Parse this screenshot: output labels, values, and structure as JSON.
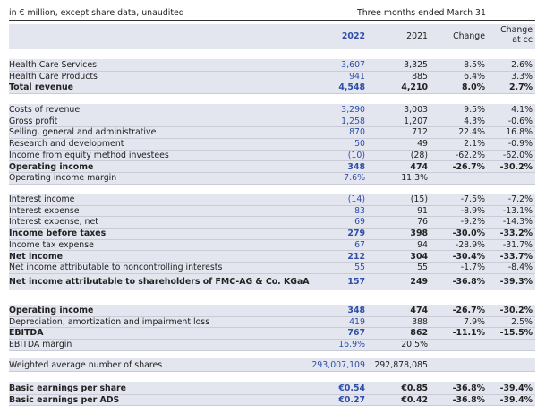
{
  "header": {
    "unit_note": "in € million, except share data, unaudited",
    "period": "Three months ended March 31"
  },
  "columns": {
    "y2022": "2022",
    "y2021": "2021",
    "change": "Change",
    "change_cc_line1": "Change",
    "change_cc_line2": "at cc"
  },
  "rows": [
    {
      "label": "Health Care Services",
      "v2022": "3,607",
      "v2021": "3,325",
      "change": "8.5%",
      "change_cc": "2.6%",
      "bold": false
    },
    {
      "label": "Health Care Products",
      "v2022": "941",
      "v2021": "885",
      "change": "6.4%",
      "change_cc": "3.3%",
      "bold": false
    },
    {
      "label": "Total revenue",
      "v2022": "4,548",
      "v2021": "4,210",
      "change": "8.0%",
      "change_cc": "2.7%",
      "bold": true
    },
    {
      "label": "Costs of revenue",
      "v2022": "3,290",
      "v2021": "3,003",
      "change": "9.5%",
      "change_cc": "4.1%",
      "bold": false
    },
    {
      "label": "Gross profit",
      "v2022": "1,258",
      "v2021": "1,207",
      "change": "4.3%",
      "change_cc": "-0.6%",
      "bold": false
    },
    {
      "label": "Selling, general and administrative",
      "v2022": "870",
      "v2021": "712",
      "change": "22.4%",
      "change_cc": "16.8%",
      "bold": false
    },
    {
      "label": "Research and development",
      "v2022": "50",
      "v2021": "49",
      "change": "2.1%",
      "change_cc": "-0.9%",
      "bold": false
    },
    {
      "label": "Income from equity method investees",
      "v2022": "(10)",
      "v2021": "(28)",
      "change": "-62.2%",
      "change_cc": "-62.0%",
      "bold": false
    },
    {
      "label": "Operating income",
      "v2022": "348",
      "v2021": "474",
      "change": "-26.7%",
      "change_cc": "-30.2%",
      "bold": true
    },
    {
      "label": "Operating income margin",
      "v2022": "7.6%",
      "v2021": "11.3%",
      "change": "",
      "change_cc": "",
      "bold": false
    },
    {
      "label": "Interest income",
      "v2022": "(14)",
      "v2021": "(15)",
      "change": "-7.5%",
      "change_cc": "-7.2%",
      "bold": false
    },
    {
      "label": "Interest expense",
      "v2022": "83",
      "v2021": "91",
      "change": "-8.9%",
      "change_cc": "-13.1%",
      "bold": false
    },
    {
      "label": "Interest expense, net",
      "v2022": "69",
      "v2021": "76",
      "change": "-9.2%",
      "change_cc": "-14.3%",
      "bold": false
    },
    {
      "label": "Income before taxes",
      "v2022": "279",
      "v2021": "398",
      "change": "-30.0%",
      "change_cc": "-33.2%",
      "bold": true
    },
    {
      "label": "Income tax expense",
      "v2022": "67",
      "v2021": "94",
      "change": "-28.9%",
      "change_cc": "-31.7%",
      "bold": false
    },
    {
      "label": "Net income",
      "v2022": "212",
      "v2021": "304",
      "change": "-30.4%",
      "change_cc": "-33.7%",
      "bold": true
    },
    {
      "label": "Net income attributable to noncontrolling interests",
      "v2022": "55",
      "v2021": "55",
      "change": "-1.7%",
      "change_cc": "-8.4%",
      "bold": false
    },
    {
      "label": "Net income attributable to shareholders of FMC-AG & Co. KGaA",
      "v2022": "157",
      "v2021": "249",
      "change": "-36.8%",
      "change_cc": "-39.3%",
      "bold": true
    },
    {
      "label": "Operating income",
      "v2022": "348",
      "v2021": "474",
      "change": "-26.7%",
      "change_cc": "-30.2%",
      "bold": true
    },
    {
      "label": "Depreciation, amortization and impairment loss",
      "v2022": "419",
      "v2021": "388",
      "change": "7.9%",
      "change_cc": "2.5%",
      "bold": false
    },
    {
      "label": "EBITDA",
      "v2022": "767",
      "v2021": "862",
      "change": "-11.1%",
      "change_cc": "-15.5%",
      "bold": true
    },
    {
      "label": "EBITDA margin",
      "v2022": "16.9%",
      "v2021": "20.5%",
      "change": "",
      "change_cc": "",
      "bold": false
    },
    {
      "label": "Weighted average number of shares",
      "v2022": "293,007,109",
      "v2021": "292,878,085",
      "change": "",
      "change_cc": "",
      "bold": false
    },
    {
      "label": "Basic earnings per share",
      "v2022": "€0.54",
      "v2021": "€0.85",
      "change": "-36.8%",
      "change_cc": "-39.4%",
      "bold": true
    },
    {
      "label": "Basic earnings per ADS",
      "v2022": "€0.27",
      "v2021": "€0.42",
      "change": "-36.8%",
      "change_cc": "-39.4%",
      "bold": true
    }
  ]
}
